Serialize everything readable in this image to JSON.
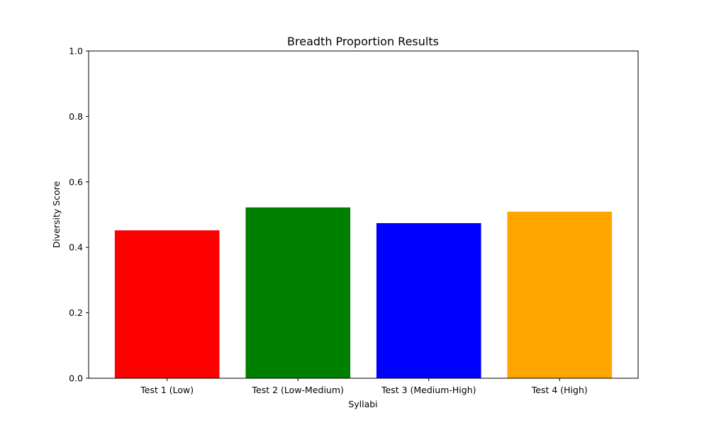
{
  "chart_data": {
    "type": "bar",
    "title": "Breadth Proportion Results",
    "xlabel": "Syllabi",
    "ylabel": "Diversity Score",
    "categories": [
      "Test 1 (Low)",
      "Test 2 (Low-Medium)",
      "Test 3 (Medium-High)",
      "Test 4 (High)"
    ],
    "values": [
      0.452,
      0.522,
      0.474,
      0.509
    ],
    "colors": [
      "#ff0000",
      "#008000",
      "#0000ff",
      "#ffa500"
    ],
    "ylim": [
      0,
      1.0
    ],
    "yticks": [
      "0.0",
      "0.2",
      "0.4",
      "0.6",
      "0.8",
      "1.0"
    ],
    "grid": false,
    "legend": false
  }
}
